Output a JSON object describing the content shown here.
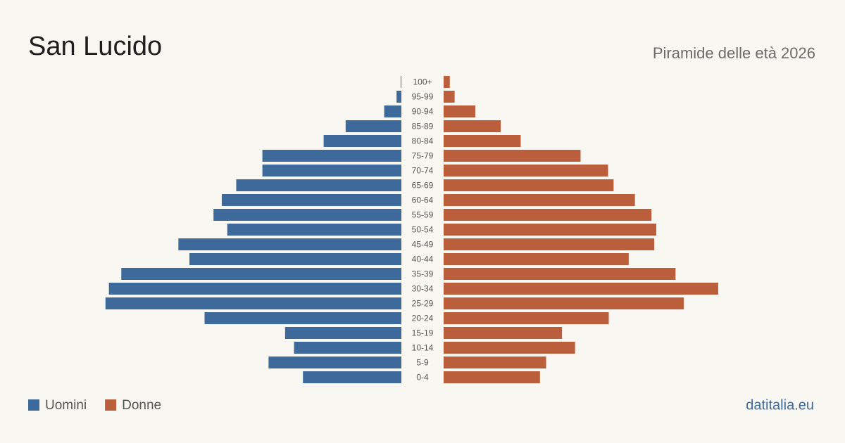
{
  "chart_data": {
    "type": "pyramid",
    "title": "San Lucido",
    "subtitle": "Piramide delle età 2026",
    "source": "datitalia.eu",
    "categories": [
      "100+",
      "95-99",
      "90-94",
      "85-89",
      "80-84",
      "75-79",
      "70-74",
      "65-69",
      "60-64",
      "55-59",
      "50-54",
      "45-49",
      "40-44",
      "35-39",
      "30-34",
      "25-29",
      "20-24",
      "15-19",
      "10-14",
      "5-9",
      "0-4"
    ],
    "xlim": [
      0,
      440
    ],
    "series": [
      {
        "name": "Uomini",
        "color": "#3d6a9a",
        "values": [
          1,
          7,
          25,
          81,
          113,
          202,
          202,
          240,
          261,
          273,
          253,
          324,
          308,
          407,
          425,
          430,
          286,
          169,
          156,
          193,
          143
        ]
      },
      {
        "name": "Donne",
        "color": "#bb5e3c",
        "values": [
          9,
          16,
          46,
          83,
          112,
          199,
          239,
          247,
          278,
          302,
          309,
          306,
          269,
          337,
          399,
          349,
          240,
          172,
          191,
          149,
          140
        ]
      }
    ]
  }
}
